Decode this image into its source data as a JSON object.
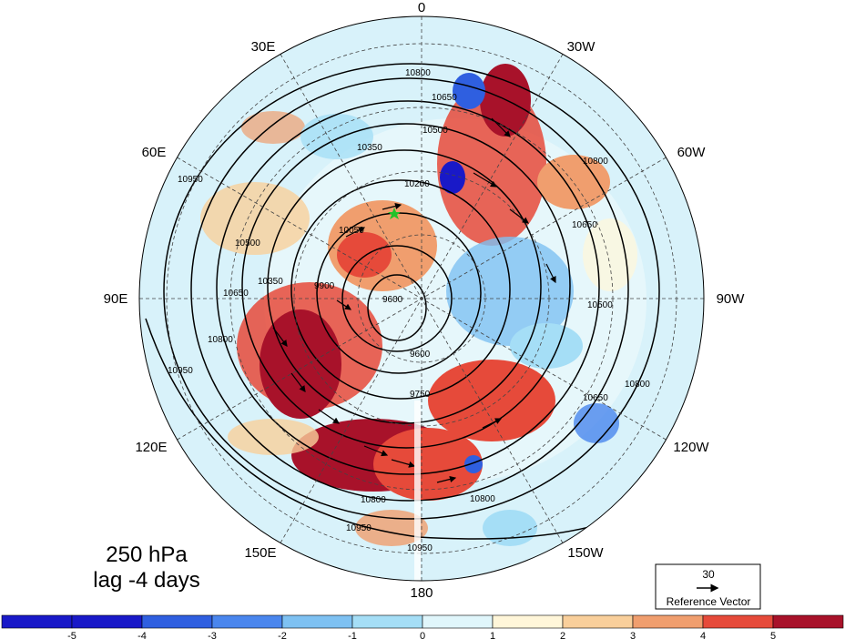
{
  "title": {
    "line1": "250 hPa",
    "line2": "lag -4 days"
  },
  "longitude_labels": [
    "0",
    "30W",
    "60W",
    "90W",
    "120W",
    "150W",
    "180",
    "150E",
    "120E",
    "90E",
    "60E",
    "30E"
  ],
  "contour_labels": [
    "10800",
    "10650",
    "10500",
    "10350",
    "10200",
    "10050",
    "9900",
    "9750",
    "9600",
    "9600",
    "10800",
    "10800",
    "10950",
    "10950",
    "10950",
    "10800",
    "10650",
    "10500",
    "10350",
    "10800",
    "10650",
    "10500",
    "10650",
    "10800",
    "10950"
  ],
  "colorbar": {
    "ticks": [
      "-5",
      "-4",
      "-3",
      "-2",
      "-1",
      "0",
      "1",
      "2",
      "3",
      "4",
      "5"
    ],
    "colors": [
      "#1919c8",
      "#2f5fe0",
      "#4a86ee",
      "#7ec1f2",
      "#a5def6",
      "#e0f6fb",
      "#fff6d9",
      "#f9cf9b",
      "#f09e6e",
      "#e64a3a",
      "#a8122a"
    ]
  },
  "reference_vector": {
    "value": "30",
    "label": "Reference Vector"
  },
  "marker": {
    "name": "green-star",
    "color": "#22c22a"
  }
}
